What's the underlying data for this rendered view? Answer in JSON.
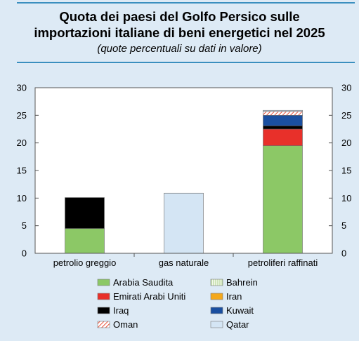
{
  "header": {
    "title_line1": "Quota dei paesi del Golfo Persico sulle",
    "title_line2": "importazioni italiane di beni energetici nel 2025",
    "subtitle": "(quote percentuali su dati in valore)"
  },
  "chart_data": {
    "type": "bar",
    "stacked": true,
    "title": "Quota dei paesi del Golfo Persico sulle importazioni italiane di beni energetici nel 2025",
    "subtitle": "(quote percentuali su dati in valore)",
    "categories": [
      "petrolio greggio",
      "gas naturale",
      "petroliferi raffinati"
    ],
    "ylim": [
      0,
      30
    ],
    "yticks": [
      0,
      5,
      10,
      15,
      20,
      25,
      30
    ],
    "right_axis": true,
    "grid": false,
    "legend_position": "bottom",
    "series": [
      {
        "name": "Arabia Saudita",
        "color": "#8cc866",
        "pattern": "solid",
        "values": [
          4.5,
          0,
          19.5
        ]
      },
      {
        "name": "Bahrein",
        "color": "#e6f2d2",
        "pattern": "vlines",
        "values": [
          0,
          0,
          0
        ]
      },
      {
        "name": "Emirati Arabi Uniti",
        "color": "#e8302a",
        "pattern": "solid",
        "values": [
          0,
          0,
          3.0
        ]
      },
      {
        "name": "Iran",
        "color": "#f4a81c",
        "pattern": "solid",
        "values": [
          0,
          0,
          0
        ]
      },
      {
        "name": "Iraq",
        "color": "#000000",
        "pattern": "solid",
        "values": [
          5.6,
          0,
          0.6
        ]
      },
      {
        "name": "Kuwait",
        "color": "#1a4fa0",
        "pattern": "solid",
        "values": [
          0,
          0,
          1.9
        ]
      },
      {
        "name": "Oman",
        "color": "#e8503a",
        "pattern": "hatch",
        "values": [
          0,
          0,
          0.7
        ]
      },
      {
        "name": "Qatar",
        "color": "#d4e5f4",
        "pattern": "solid",
        "values": [
          0,
          10.9,
          0.2
        ]
      }
    ]
  }
}
